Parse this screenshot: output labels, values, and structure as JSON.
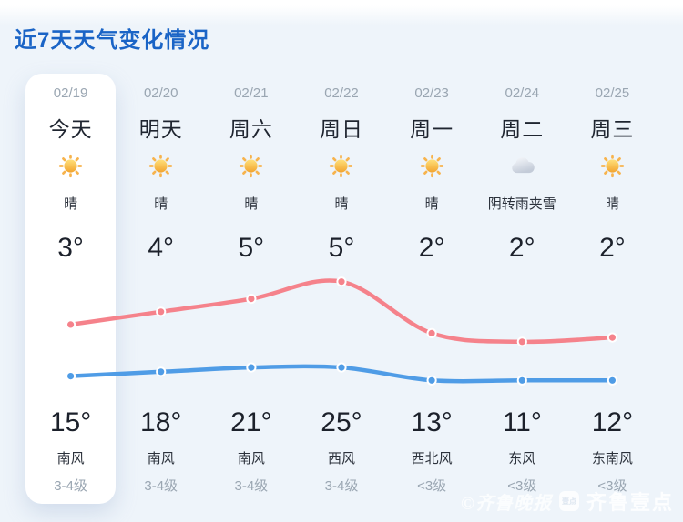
{
  "page": {
    "title": "近7天天气变化情况"
  },
  "days": [
    {
      "date": "02/19",
      "label": "今天",
      "icon": "sun",
      "condition": "晴",
      "temp_top": "3°",
      "temp_bottom": "15°",
      "wind": "南风",
      "wind_level": "3-4级",
      "highlight": true
    },
    {
      "date": "02/20",
      "label": "明天",
      "icon": "sun",
      "condition": "晴",
      "temp_top": "4°",
      "temp_bottom": "18°",
      "wind": "南风",
      "wind_level": "3-4级",
      "highlight": false
    },
    {
      "date": "02/21",
      "label": "周六",
      "icon": "sun",
      "condition": "晴",
      "temp_top": "5°",
      "temp_bottom": "21°",
      "wind": "南风",
      "wind_level": "3-4级",
      "highlight": false
    },
    {
      "date": "02/22",
      "label": "周日",
      "icon": "sun",
      "condition": "晴",
      "temp_top": "5°",
      "temp_bottom": "25°",
      "wind": "西风",
      "wind_level": "3-4级",
      "highlight": false
    },
    {
      "date": "02/23",
      "label": "周一",
      "icon": "sun",
      "condition": "晴",
      "temp_top": "2°",
      "temp_bottom": "13°",
      "wind": "西北风",
      "wind_level": "<3级",
      "highlight": false
    },
    {
      "date": "02/24",
      "label": "周二",
      "icon": "cloud",
      "condition": "阴转雨夹雪",
      "temp_top": "2°",
      "temp_bottom": "11°",
      "wind": "东风",
      "wind_level": "<3级",
      "highlight": false
    },
    {
      "date": "02/25",
      "label": "周三",
      "icon": "sun",
      "condition": "晴",
      "temp_top": "2°",
      "temp_bottom": "12°",
      "wind": "东南风",
      "wind_level": "<3级",
      "highlight": false
    }
  ],
  "chart_data": {
    "type": "line",
    "categories": [
      "02/19",
      "02/20",
      "02/21",
      "02/22",
      "02/23",
      "02/24",
      "02/25"
    ],
    "series": [
      {
        "name": "高温(红线)",
        "color": "#f5828b",
        "values": [
          15,
          18,
          21,
          25,
          13,
          11,
          12
        ]
      },
      {
        "name": "低温(蓝线)",
        "color": "#4f9ce6",
        "values": [
          3,
          4,
          5,
          5,
          2,
          2,
          2
        ]
      }
    ],
    "ylim": [
      1,
      26
    ],
    "unit": "°C",
    "grid": false,
    "legend": "none",
    "smooth": true
  },
  "colors": {
    "title_blue": "#1a64c6",
    "high_line": "#f5828b",
    "low_line": "#4f9ce6",
    "muted_gray": "#9aa6b2",
    "background": "#eef4fa"
  },
  "watermark": {
    "seal": "©齐鲁晚报",
    "badge": "壹点",
    "brand": "齐鲁壹点"
  }
}
